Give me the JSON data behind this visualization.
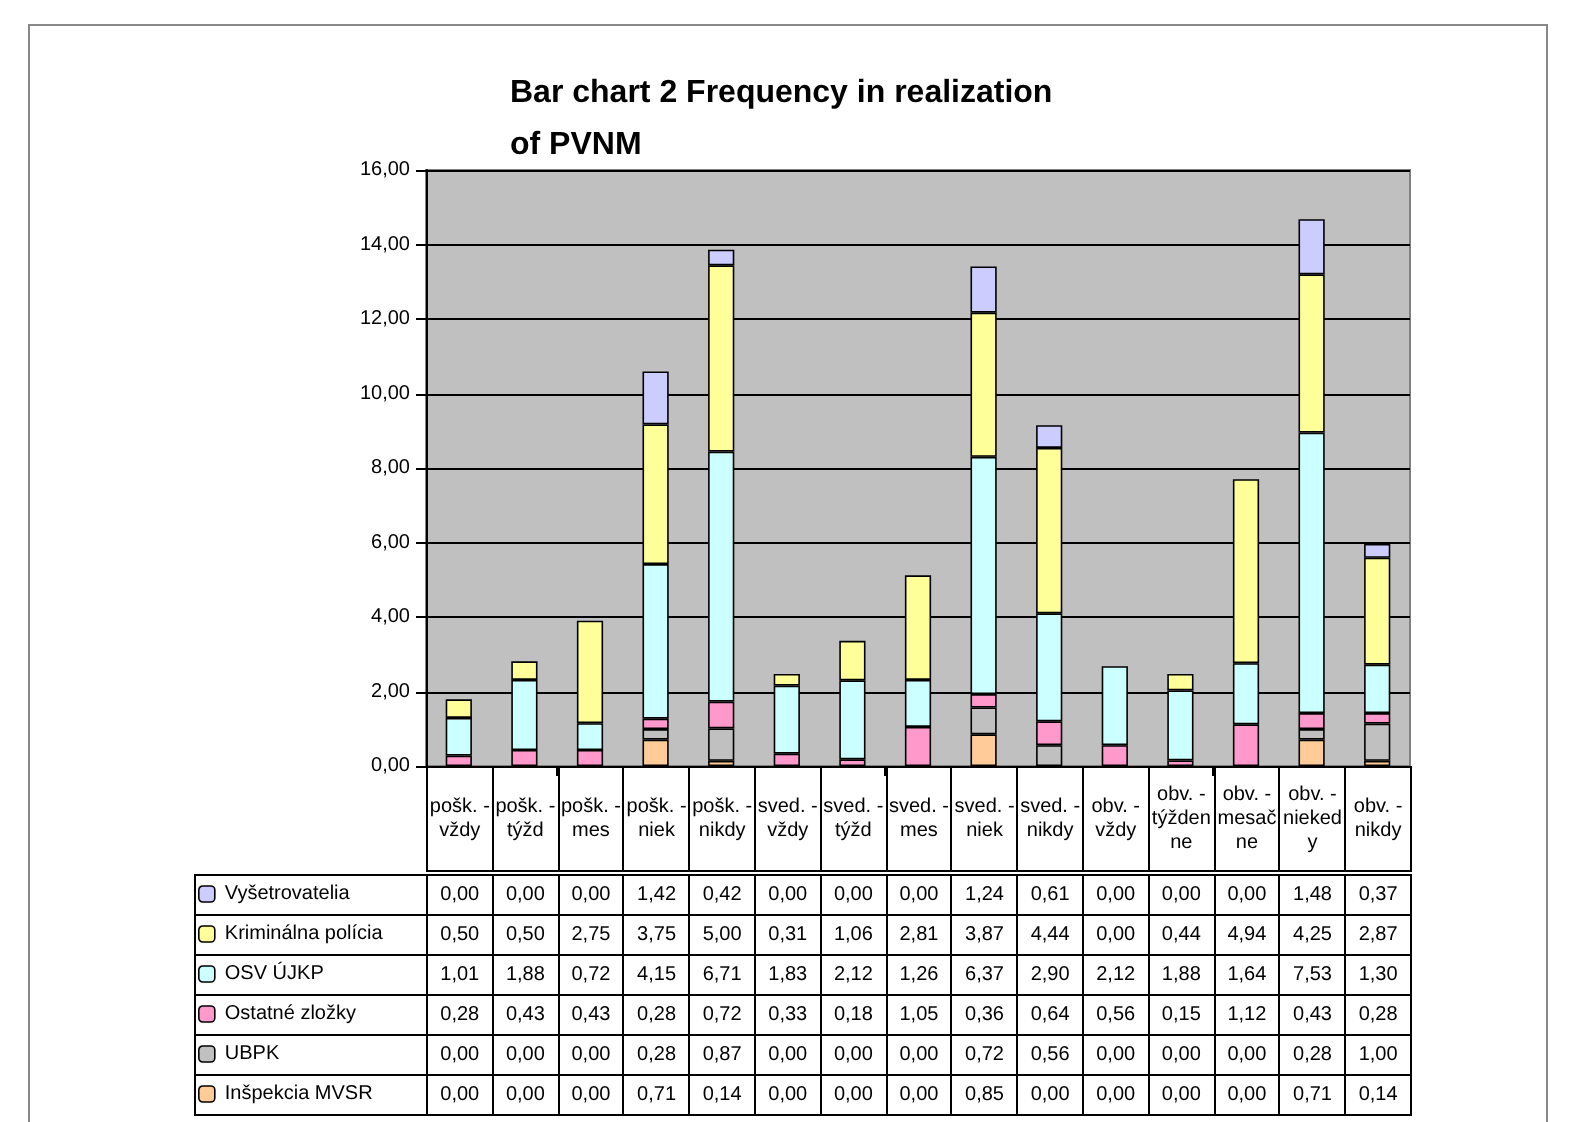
{
  "chart_data": {
    "type": "bar",
    "stacked": true,
    "title": "Bar chart 2 Frequency in realization of PVNM",
    "categories": [
      "pošk. - vždy",
      "pošk. - týžd",
      "pošk. - mes",
      "pošk. - niek",
      "pošk. - nikdy",
      "sved. - vždy",
      "sved. - týžd",
      "sved. - mes",
      "sved. - niek",
      "sved. - nikdy",
      "obv. - vždy",
      "obv. - týždenne",
      "obv. - mesačne",
      "obv. - niekedy",
      "obv. - nikdy"
    ],
    "series": [
      {
        "name": "Inšpekcia MVSR",
        "color": "#ffcc99",
        "values": [
          0,
          0,
          0,
          0.71,
          0.14,
          0,
          0,
          0,
          0.85,
          0,
          0,
          0,
          0,
          0.71,
          0.14
        ],
        "value_labels": [
          "0,00",
          "0,00",
          "0,00",
          "0,71",
          "0,14",
          "0,00",
          "0,00",
          "0,00",
          "0,85",
          "0,00",
          "0,00",
          "0,00",
          "0,00",
          "0,71",
          "0,14"
        ]
      },
      {
        "name": "UBPK",
        "color": "#c0c0c0",
        "values": [
          0,
          0,
          0,
          0.28,
          0.87,
          0,
          0,
          0,
          0.72,
          0.56,
          0,
          0,
          0,
          0.28,
          1.0
        ],
        "value_labels": [
          "0,00",
          "0,00",
          "0,00",
          "0,28",
          "0,87",
          "0,00",
          "0,00",
          "0,00",
          "0,72",
          "0,56",
          "0,00",
          "0,00",
          "0,00",
          "0,28",
          "1,00"
        ]
      },
      {
        "name": "Ostatné zložky",
        "color": "#ff99cc",
        "values": [
          0.28,
          0.43,
          0.43,
          0.28,
          0.72,
          0.33,
          0.18,
          1.05,
          0.36,
          0.64,
          0.56,
          0.15,
          1.12,
          0.43,
          0.28
        ],
        "value_labels": [
          "0,28",
          "0,43",
          "0,43",
          "0,28",
          "0,72",
          "0,33",
          "0,18",
          "1,05",
          "0,36",
          "0,64",
          "0,56",
          "0,15",
          "1,12",
          "0,43",
          "0,28"
        ]
      },
      {
        "name": "OSV ÚJKP",
        "color": "#ccffff",
        "values": [
          1.01,
          1.88,
          0.72,
          4.15,
          6.71,
          1.83,
          2.12,
          1.26,
          6.37,
          2.9,
          2.12,
          1.88,
          1.64,
          7.53,
          1.3
        ],
        "value_labels": [
          "1,01",
          "1,88",
          "0,72",
          "4,15",
          "6,71",
          "1,83",
          "2,12",
          "1,26",
          "6,37",
          "2,90",
          "2,12",
          "1,88",
          "1,64",
          "7,53",
          "1,30"
        ]
      },
      {
        "name": "Kriminálna polícia",
        "color": "#ffff99",
        "values": [
          0.5,
          0.5,
          2.75,
          3.75,
          5.0,
          0.31,
          1.06,
          2.81,
          3.87,
          4.44,
          0,
          0.44,
          4.94,
          4.25,
          2.87
        ],
        "value_labels": [
          "0,50",
          "0,50",
          "2,75",
          "3,75",
          "5,00",
          "0,31",
          "1,06",
          "2,81",
          "3,87",
          "4,44",
          "0,00",
          "0,44",
          "4,94",
          "4,25",
          "2,87"
        ]
      },
      {
        "name": "Vyšetrovatelia",
        "color": "#ccccff",
        "values": [
          0,
          0,
          0,
          1.42,
          0.42,
          0,
          0,
          0,
          1.24,
          0.61,
          0,
          0,
          0,
          1.48,
          0.37
        ],
        "value_labels": [
          "0,00",
          "0,00",
          "0,00",
          "1,42",
          "0,42",
          "0,00",
          "0,00",
          "0,00",
          "1,24",
          "0,61",
          "0,00",
          "0,00",
          "0,00",
          "1,48",
          "0,37"
        ]
      }
    ],
    "ylim": [
      0,
      16
    ],
    "yticks": [
      {
        "value": 0,
        "label": "0,00"
      },
      {
        "value": 2,
        "label": "2,00"
      },
      {
        "value": 4,
        "label": "4,00"
      },
      {
        "value": 6,
        "label": "6,00"
      },
      {
        "value": 8,
        "label": "8,00"
      },
      {
        "value": 10,
        "label": "10,00"
      },
      {
        "value": 12,
        "label": "12,00"
      },
      {
        "value": 14,
        "label": "14,00"
      },
      {
        "value": 16,
        "label": "16,00"
      }
    ],
    "grid": "y",
    "legend": "bottom left"
  }
}
